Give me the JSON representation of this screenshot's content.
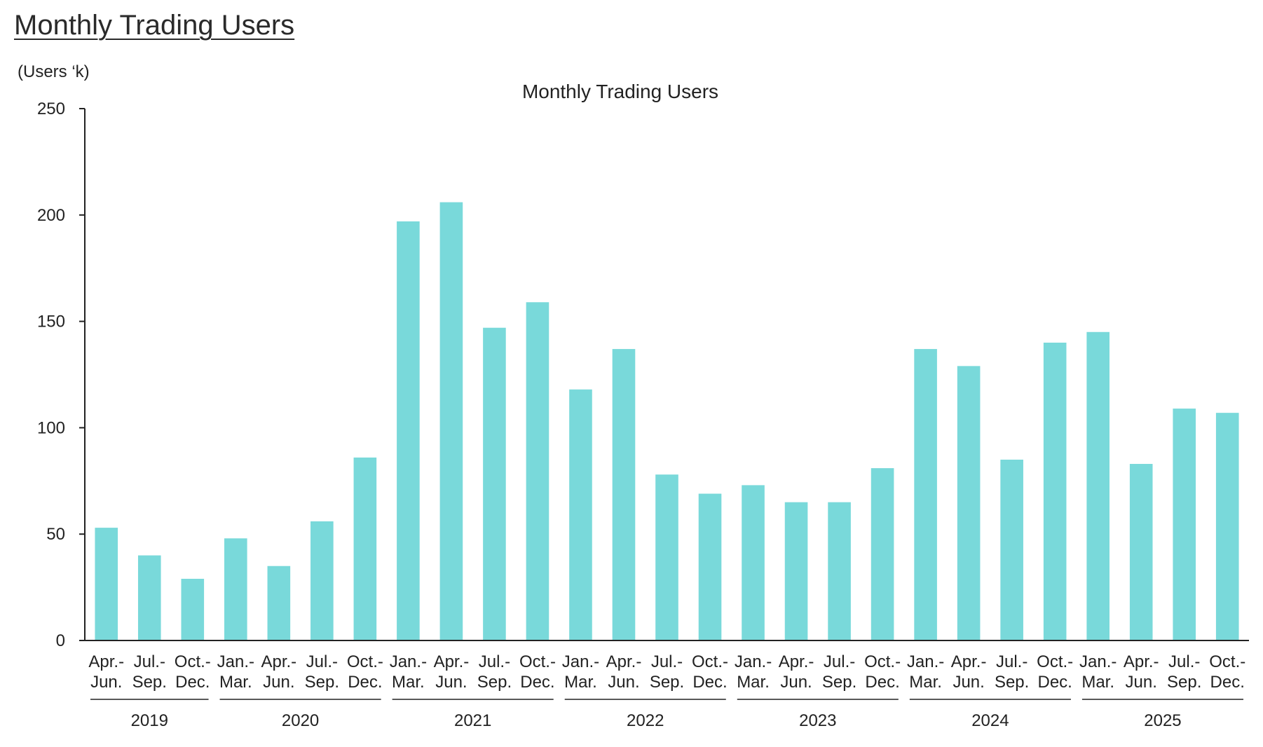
{
  "page": {
    "title": "Monthly Trading Users"
  },
  "colors": {
    "bar": "#79d9da",
    "axis": "#222222"
  },
  "chart_data": {
    "type": "bar",
    "title": "Monthly Trading Users",
    "ylabel": "(Users ‘k)",
    "xlabel": "",
    "ylim": [
      0,
      250
    ],
    "yticks": [
      "0",
      "50",
      "100",
      "150",
      "200",
      "250"
    ],
    "grid": false,
    "categories": [
      {
        "line1": "Apr.-",
        "line2": "Jun."
      },
      {
        "line1": "Jul.-",
        "line2": "Sep."
      },
      {
        "line1": "Oct.-",
        "line2": "Dec."
      },
      {
        "line1": "Jan.-",
        "line2": "Mar."
      },
      {
        "line1": "Apr.-",
        "line2": "Jun."
      },
      {
        "line1": "Jul.-",
        "line2": "Sep."
      },
      {
        "line1": "Oct.-",
        "line2": "Dec."
      },
      {
        "line1": "Jan.-",
        "line2": "Mar."
      },
      {
        "line1": "Apr.-",
        "line2": "Jun."
      },
      {
        "line1": "Jul.-",
        "line2": "Sep."
      },
      {
        "line1": "Oct.-",
        "line2": "Dec."
      },
      {
        "line1": "Jan.-",
        "line2": "Mar."
      },
      {
        "line1": "Apr.-",
        "line2": "Jun."
      },
      {
        "line1": "Jul.-",
        "line2": "Sep."
      },
      {
        "line1": "Oct.-",
        "line2": "Dec."
      },
      {
        "line1": "Jan.-",
        "line2": "Mar."
      },
      {
        "line1": "Apr.-",
        "line2": "Jun."
      },
      {
        "line1": "Jul.-",
        "line2": "Sep."
      },
      {
        "line1": "Oct.-",
        "line2": "Dec."
      },
      {
        "line1": "Jan.-",
        "line2": "Mar."
      },
      {
        "line1": "Apr.-",
        "line2": "Jun."
      },
      {
        "line1": "Jul.-",
        "line2": "Sep."
      },
      {
        "line1": "Oct.-",
        "line2": "Dec."
      },
      {
        "line1": "Jan.-",
        "line2": "Mar."
      },
      {
        "line1": "Apr.-",
        "line2": "Jun."
      },
      {
        "line1": "Jul.-",
        "line2": "Sep."
      },
      {
        "line1": "Oct.-",
        "line2": "Dec."
      }
    ],
    "values": [
      53,
      40,
      29,
      48,
      35,
      56,
      86,
      197,
      206,
      147,
      159,
      118,
      137,
      78,
      69,
      73,
      65,
      65,
      81,
      137,
      129,
      85,
      140,
      145,
      83,
      109,
      107
    ],
    "year_groups": [
      {
        "label": "2019",
        "start": 0,
        "end": 2
      },
      {
        "label": "2020",
        "start": 3,
        "end": 6
      },
      {
        "label": "2021",
        "start": 7,
        "end": 10
      },
      {
        "label": "2022",
        "start": 11,
        "end": 14
      },
      {
        "label": "2023",
        "start": 15,
        "end": 18
      },
      {
        "label": "2024",
        "start": 19,
        "end": 22
      },
      {
        "label": "2025",
        "start": 23,
        "end": 26
      }
    ]
  }
}
